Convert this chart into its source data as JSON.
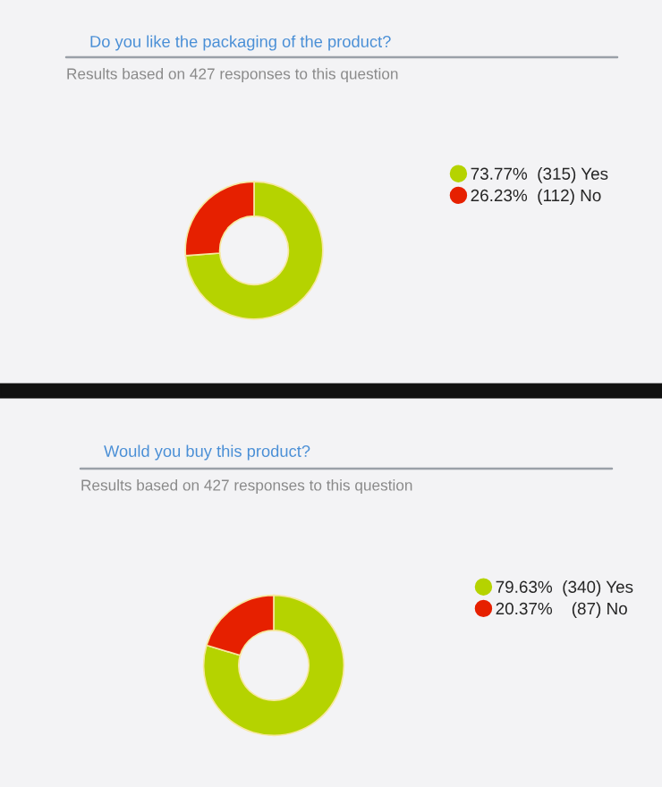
{
  "chart_data": [
    {
      "type": "donut",
      "title": "Do you like the packaging of the product?",
      "subtitle": "Results based on 427 responses to this question",
      "categories": [
        "Yes",
        "No"
      ],
      "values": [
        73.77,
        26.23
      ],
      "value_labels": [
        "73.77%  (315)",
        "26.23%  (112)"
      ],
      "colors": [
        "#b5d300",
        "#e62000"
      ],
      "legend": "right"
    },
    {
      "type": "donut",
      "title": "Would you buy this product?",
      "subtitle": "Results based on 427 responses to this question",
      "categories": [
        "Yes",
        "No"
      ],
      "values": [
        79.63,
        20.37
      ],
      "value_labels": [
        "79.63%  (340)",
        "20.37%    (87)"
      ],
      "colors": [
        "#b5d300",
        "#e62000"
      ],
      "legend": "right"
    }
  ]
}
